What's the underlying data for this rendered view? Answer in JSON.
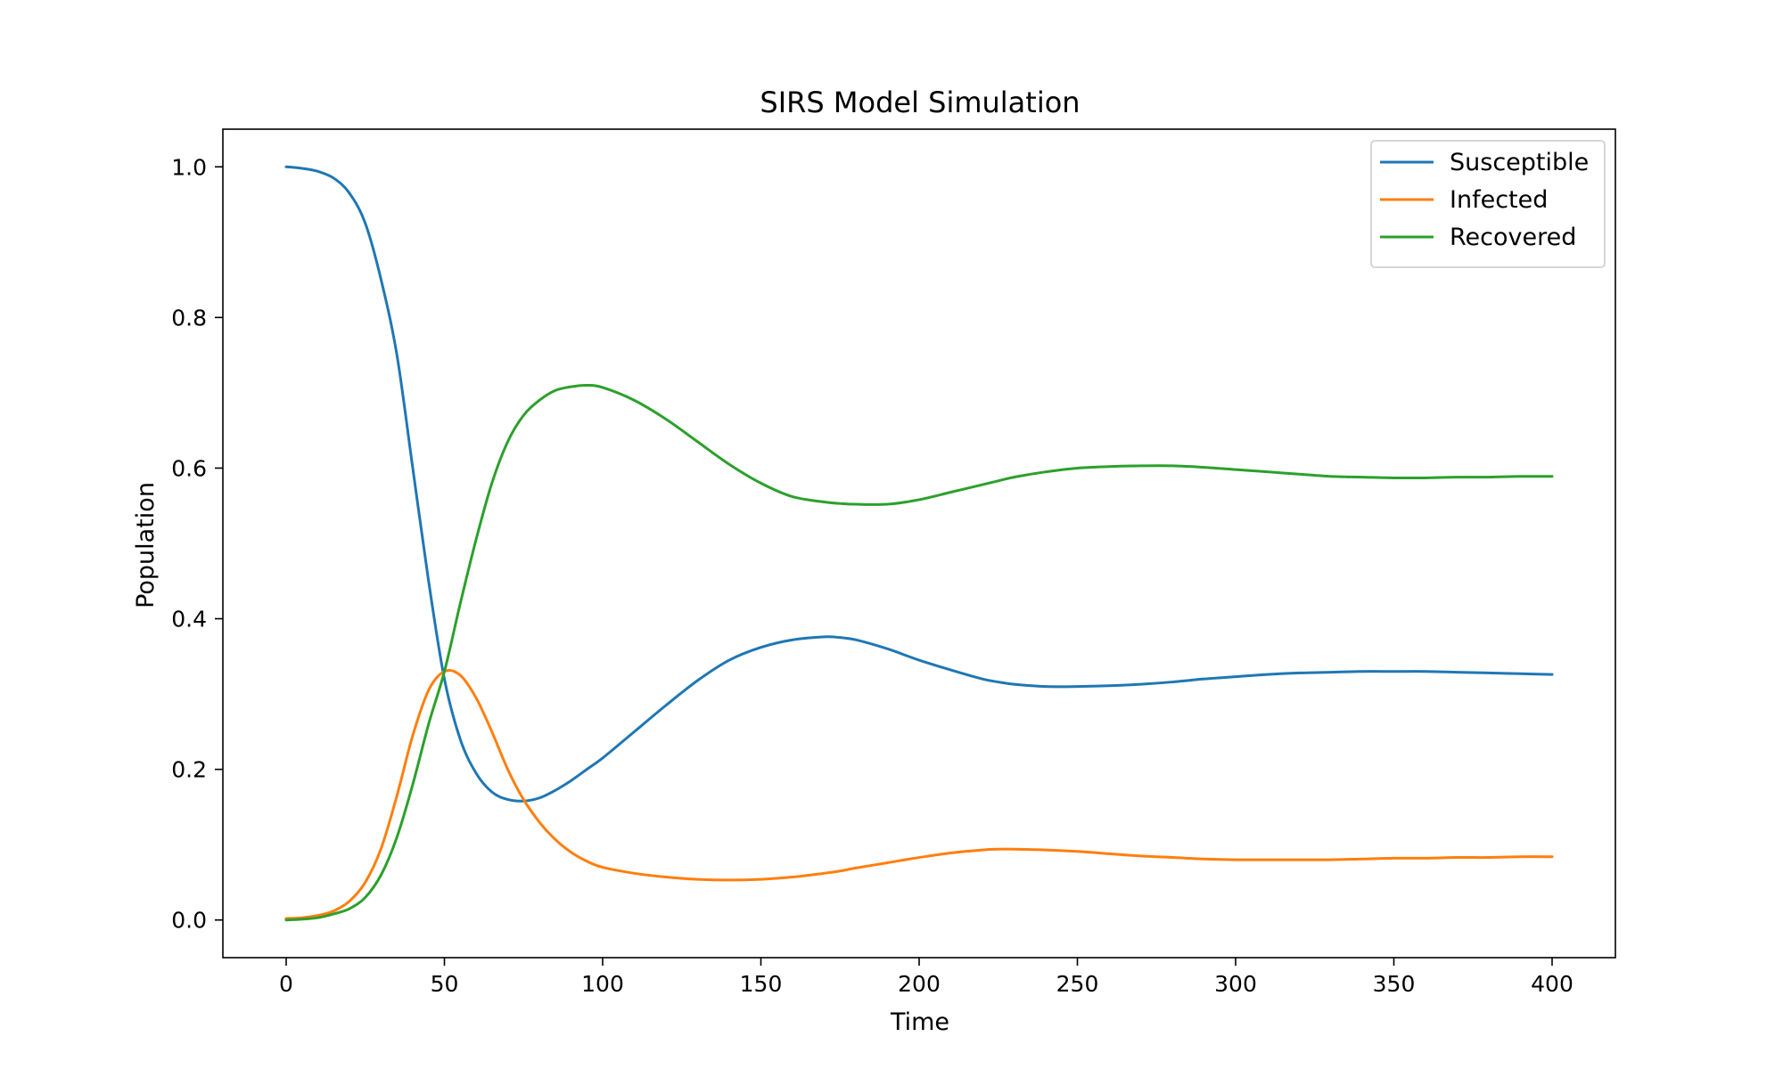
{
  "chart_data": {
    "type": "line",
    "title": "SIRS Model Simulation",
    "xlabel": "Time",
    "ylabel": "Population",
    "xlim": [
      -20,
      420
    ],
    "ylim": [
      -0.05,
      1.05
    ],
    "xticks": [
      0,
      50,
      100,
      150,
      200,
      250,
      300,
      350,
      400
    ],
    "yticks": [
      0.0,
      0.2,
      0.4,
      0.6,
      0.8,
      1.0
    ],
    "ytick_labels": [
      "0.0",
      "0.2",
      "0.4",
      "0.6",
      "0.8",
      "1.0"
    ],
    "grid": false,
    "legend_position": "top-right",
    "x": [
      0,
      5,
      10,
      15,
      20,
      25,
      30,
      35,
      40,
      45,
      50,
      55,
      60,
      65,
      70,
      75,
      80,
      85,
      90,
      95,
      100,
      110,
      120,
      130,
      140,
      150,
      160,
      170,
      175,
      180,
      190,
      200,
      210,
      220,
      225,
      230,
      240,
      250,
      260,
      270,
      280,
      290,
      300,
      310,
      320,
      330,
      340,
      350,
      360,
      370,
      380,
      390,
      400
    ],
    "series": [
      {
        "name": "Susceptible",
        "color": "#1f77b4",
        "values": [
          1.0,
          0.998,
          0.994,
          0.985,
          0.965,
          0.925,
          0.85,
          0.75,
          0.6,
          0.45,
          0.32,
          0.24,
          0.195,
          0.17,
          0.16,
          0.158,
          0.162,
          0.172,
          0.185,
          0.2,
          0.215,
          0.25,
          0.285,
          0.318,
          0.345,
          0.362,
          0.372,
          0.376,
          0.375,
          0.372,
          0.36,
          0.345,
          0.332,
          0.32,
          0.316,
          0.313,
          0.31,
          0.31,
          0.311,
          0.313,
          0.316,
          0.32,
          0.323,
          0.326,
          0.328,
          0.329,
          0.33,
          0.33,
          0.33,
          0.329,
          0.328,
          0.327,
          0.326
        ]
      },
      {
        "name": "Infected",
        "color": "#ff7f0e",
        "values": [
          0.002,
          0.003,
          0.006,
          0.012,
          0.025,
          0.05,
          0.095,
          0.165,
          0.245,
          0.305,
          0.33,
          0.325,
          0.295,
          0.25,
          0.2,
          0.16,
          0.13,
          0.107,
          0.09,
          0.078,
          0.07,
          0.062,
          0.057,
          0.054,
          0.053,
          0.054,
          0.057,
          0.062,
          0.065,
          0.069,
          0.076,
          0.083,
          0.089,
          0.093,
          0.094,
          0.094,
          0.093,
          0.091,
          0.088,
          0.085,
          0.083,
          0.081,
          0.08,
          0.08,
          0.08,
          0.08,
          0.081,
          0.082,
          0.082,
          0.083,
          0.083,
          0.084,
          0.084
        ]
      },
      {
        "name": "Recovered",
        "color": "#2ca02c",
        "values": [
          0.0,
          0.001,
          0.003,
          0.008,
          0.015,
          0.03,
          0.06,
          0.11,
          0.18,
          0.26,
          0.33,
          0.42,
          0.505,
          0.58,
          0.635,
          0.67,
          0.69,
          0.703,
          0.708,
          0.71,
          0.707,
          0.69,
          0.665,
          0.635,
          0.605,
          0.58,
          0.562,
          0.555,
          0.553,
          0.552,
          0.552,
          0.558,
          0.568,
          0.578,
          0.583,
          0.588,
          0.595,
          0.6,
          0.602,
          0.603,
          0.603,
          0.601,
          0.598,
          0.595,
          0.592,
          0.589,
          0.588,
          0.587,
          0.587,
          0.588,
          0.588,
          0.589,
          0.589
        ]
      }
    ]
  }
}
